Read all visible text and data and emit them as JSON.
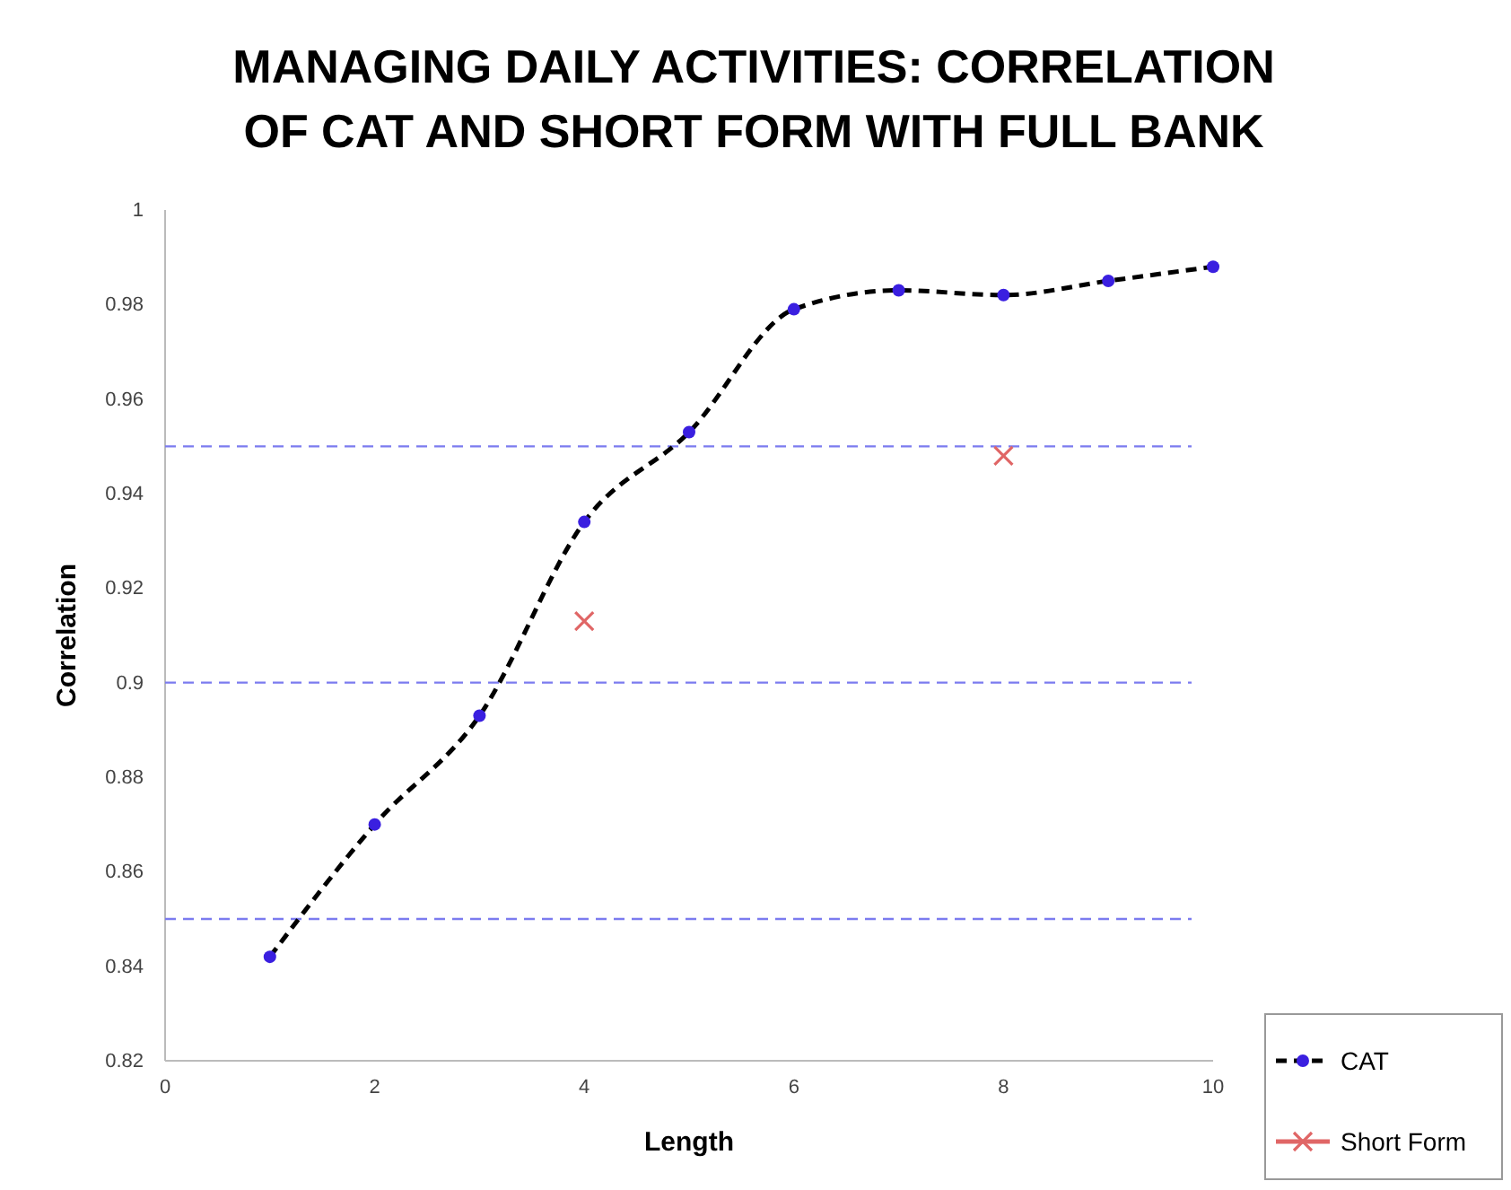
{
  "chart_data": {
    "type": "line",
    "title": "MANAGING DAILY ACTIVITIES: CORRELATION OF CAT AND SHORT FORM WITH FULL BANK",
    "xlabel": "Length",
    "ylabel": "Correlation",
    "xlim": [
      0,
      10
    ],
    "xticks": [
      0,
      2,
      4,
      6,
      8,
      10
    ],
    "ylim": [
      0.82,
      1
    ],
    "yticks": [
      {
        "value": 0.82,
        "label": "0.82"
      },
      {
        "value": 0.84,
        "label": "0.84"
      },
      {
        "value": 0.86,
        "label": "0.86"
      },
      {
        "value": 0.88,
        "label": "0.88"
      },
      {
        "value": 0.9,
        "label": "0.9"
      },
      {
        "value": 0.92,
        "label": "0.92"
      },
      {
        "value": 0.94,
        "label": "0.94"
      },
      {
        "value": 0.96,
        "label": "0.96"
      },
      {
        "value": 0.98,
        "label": "0.98"
      },
      {
        "value": 1,
        "label": "1"
      }
    ],
    "grid": false,
    "legend": "bottom right",
    "series": [
      {
        "name": "CAT",
        "color": "#000000",
        "marker": "circle",
        "line_style": "dashed",
        "x": [
          1,
          2,
          3,
          4,
          5,
          6,
          7,
          8,
          9,
          10
        ],
        "values": [
          0.842,
          0.87,
          0.893,
          0.934,
          0.953,
          0.979,
          0.983,
          0.982,
          0.985,
          0.988
        ]
      },
      {
        "name": "Short Form",
        "type": "scatter",
        "color": "#e06666",
        "marker": "cross",
        "x": [
          4,
          8
        ],
        "values": [
          0.913,
          0.948
        ]
      }
    ],
    "ref_lines": [
      {
        "axis": "y",
        "value": 0.95,
        "label": null,
        "color": "#7b7bef",
        "line_style": "dashed"
      },
      {
        "axis": "y",
        "value": 0.9,
        "label": null,
        "color": "#7b7bef",
        "line_style": "dashed"
      },
      {
        "axis": "y",
        "value": 0.85,
        "label": null,
        "color": "#7b7bef",
        "line_style": "dashed"
      }
    ]
  }
}
